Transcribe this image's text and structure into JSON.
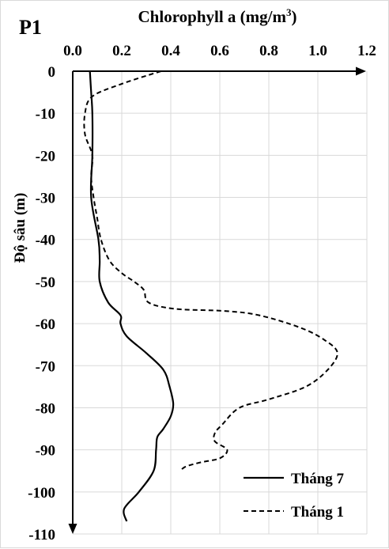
{
  "chart_data": {
    "type": "line",
    "panel_label": "P1",
    "xlabel": "Chlorophyll a (mg/m³)",
    "xlabel_main": "Chlorophyll a (mg/m",
    "xlabel_sup": "3",
    "xlabel_close": ")",
    "ylabel": "Độ sâu (m)",
    "xlim": [
      0,
      1.2
    ],
    "ylim": [
      -110,
      0
    ],
    "x_ticks": [
      0.0,
      0.2,
      0.4,
      0.6,
      0.8,
      1.0,
      1.2
    ],
    "x_tick_labels": [
      "0.0",
      "0.2",
      "0.4",
      "0.6",
      "0.8",
      "1.0",
      "1.2"
    ],
    "y_ticks": [
      0,
      -10,
      -20,
      -30,
      -40,
      -50,
      -60,
      -70,
      -80,
      -90,
      -100,
      -110
    ],
    "y_tick_labels": [
      "0",
      "-10",
      "-20",
      "-30",
      "-40",
      "-50",
      "-60",
      "-70",
      "-80",
      "-90",
      "-100",
      "-110"
    ],
    "grid": true,
    "legend_position": "bottom-right",
    "series": [
      {
        "name": "Tháng 7",
        "style": "solid",
        "color": "#000000",
        "points": [
          [
            0.07,
            0
          ],
          [
            0.075,
            -5
          ],
          [
            0.08,
            -10
          ],
          [
            0.08,
            -20
          ],
          [
            0.075,
            -30
          ],
          [
            0.105,
            -40
          ],
          [
            0.11,
            -45
          ],
          [
            0.11,
            -50
          ],
          [
            0.145,
            -55
          ],
          [
            0.195,
            -58
          ],
          [
            0.195,
            -60
          ],
          [
            0.22,
            -63
          ],
          [
            0.3,
            -67
          ],
          [
            0.37,
            -71
          ],
          [
            0.395,
            -75
          ],
          [
            0.41,
            -79
          ],
          [
            0.4,
            -82
          ],
          [
            0.37,
            -85
          ],
          [
            0.345,
            -87
          ],
          [
            0.34,
            -90
          ],
          [
            0.33,
            -95
          ],
          [
            0.27,
            -100
          ],
          [
            0.21,
            -104
          ],
          [
            0.22,
            -107
          ]
        ]
      },
      {
        "name": "Tháng 1",
        "style": "dashed",
        "color": "#000000",
        "points": [
          [
            0.36,
            0
          ],
          [
            0.2,
            -3
          ],
          [
            0.08,
            -6
          ],
          [
            0.05,
            -10
          ],
          [
            0.05,
            -15
          ],
          [
            0.08,
            -20
          ],
          [
            0.075,
            -25
          ],
          [
            0.085,
            -30
          ],
          [
            0.1,
            -35
          ],
          [
            0.115,
            -40
          ],
          [
            0.15,
            -45
          ],
          [
            0.2,
            -48
          ],
          [
            0.25,
            -50
          ],
          [
            0.29,
            -52
          ],
          [
            0.31,
            -55
          ],
          [
            0.42,
            -56.5
          ],
          [
            0.62,
            -57
          ],
          [
            0.76,
            -58
          ],
          [
            0.93,
            -61
          ],
          [
            1.03,
            -64
          ],
          [
            1.08,
            -67
          ],
          [
            1.04,
            -71
          ],
          [
            0.95,
            -75
          ],
          [
            0.8,
            -78
          ],
          [
            0.68,
            -80
          ],
          [
            0.61,
            -84
          ],
          [
            0.58,
            -86
          ],
          [
            0.58,
            -88
          ],
          [
            0.63,
            -90
          ],
          [
            0.6,
            -92
          ],
          [
            0.52,
            -93
          ],
          [
            0.46,
            -94
          ],
          [
            0.44,
            -95
          ]
        ]
      }
    ]
  }
}
